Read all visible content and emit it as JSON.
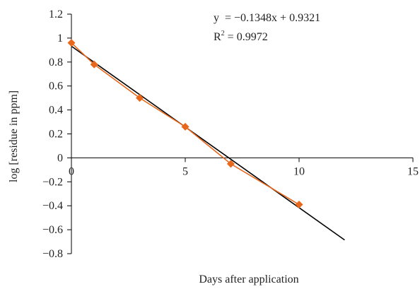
{
  "chart_data": {
    "type": "scatter",
    "title": "",
    "xlabel": "Days after application",
    "ylabel": "log [residue in ppm]",
    "xlim": [
      0,
      15
    ],
    "ylim": [
      -0.8,
      1.2
    ],
    "x_ticks": [
      0,
      5,
      10,
      15
    ],
    "y_ticks": [
      1.2,
      1,
      0.8,
      0.6,
      0.4,
      0.2,
      0,
      -0.2,
      -0.4,
      -0.6,
      -0.8
    ],
    "x_tick_labels": [
      "0",
      "5",
      "10",
      "15"
    ],
    "y_tick_labels": [
      "1.2",
      "1",
      "0.8",
      "0.6",
      "0.4",
      "0.2",
      "0",
      "−0.2",
      "−0.4",
      "−0.6",
      "−0.8"
    ],
    "grid": false,
    "series": [
      {
        "marker": "diamond",
        "color": "#E8671B",
        "connected": true,
        "points": [
          {
            "x": 0,
            "y": 0.96
          },
          {
            "x": 1,
            "y": 0.78
          },
          {
            "x": 3,
            "y": 0.5
          },
          {
            "x": 5,
            "y": 0.26
          },
          {
            "x": 7,
            "y": -0.05
          },
          {
            "x": 10,
            "y": -0.39
          }
        ]
      }
    ],
    "trendline": {
      "type": "linear",
      "slope": -0.1348,
      "intercept": 0.9321,
      "x_range": [
        0,
        12
      ],
      "color": "#000000",
      "equation_text": "y  = −0.1348x + 0.9321",
      "r2_prefix": "R",
      "r2_sup": "2",
      "r2_rest": " = 0.9972"
    }
  }
}
